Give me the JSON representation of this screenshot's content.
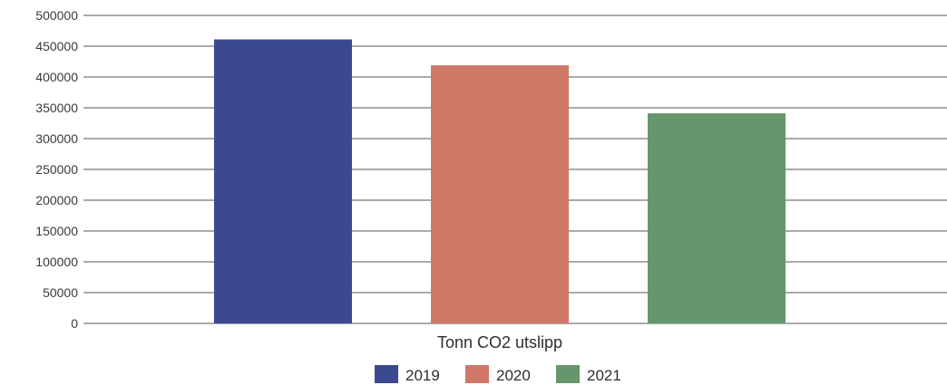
{
  "chart_data": {
    "type": "bar",
    "categories": [
      "Tonn CO2 utslipp"
    ],
    "series": [
      {
        "name": "2019",
        "values": [
          461000
        ],
        "color": "#3b4a8e"
      },
      {
        "name": "2020",
        "values": [
          419000
        ],
        "color": "#cf7868"
      },
      {
        "name": "2021",
        "values": [
          341000
        ],
        "color": "#66976c"
      }
    ],
    "ylim": [
      0,
      500000
    ],
    "yticks": [
      0,
      50000,
      100000,
      150000,
      200000,
      250000,
      300000,
      350000,
      400000,
      450000,
      500000
    ],
    "grid": true,
    "legend": "bottom-center"
  }
}
